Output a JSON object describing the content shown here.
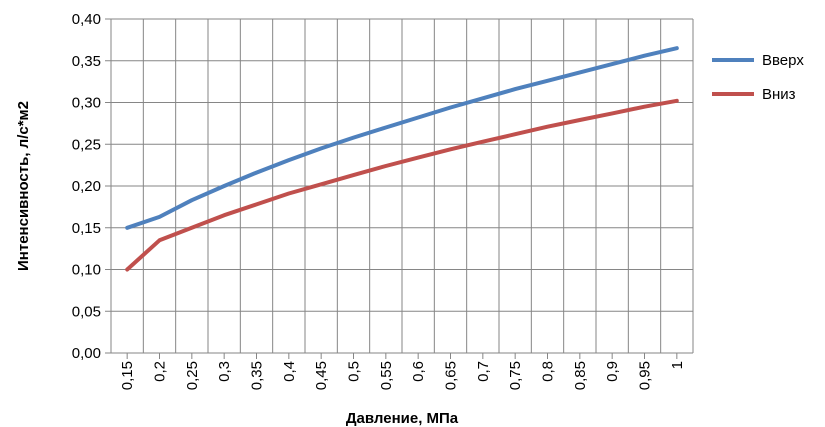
{
  "chart_data": {
    "type": "line",
    "title": "",
    "xlabel": "Давление, МПа",
    "ylabel": "Интенсивность, л/с*м2",
    "ylim": [
      0,
      0.4
    ],
    "y_ticks": [
      "0,00",
      "0,05",
      "0,10",
      "0,15",
      "0,20",
      "0,25",
      "0,30",
      "0,35",
      "0,40"
    ],
    "categories": [
      "0,15",
      "0,2",
      "0,25",
      "0,3",
      "0,35",
      "0,4",
      "0,45",
      "0,5",
      "0,55",
      "0,6",
      "0,65",
      "0,7",
      "0,75",
      "0,8",
      "0,85",
      "0,9",
      "0,95",
      "1"
    ],
    "grid": true,
    "legend_position": "right",
    "series": [
      {
        "name": "Вверх",
        "color": "#4F81BD",
        "values": [
          0.15,
          0.163,
          0.183,
          0.2,
          0.216,
          0.231,
          0.245,
          0.258,
          0.27,
          0.282,
          0.294,
          0.305,
          0.316,
          0.326,
          0.336,
          0.346,
          0.356,
          0.365
        ]
      },
      {
        "name": "Вниз",
        "color": "#C0504D",
        "values": [
          0.1,
          0.135,
          0.15,
          0.165,
          0.178,
          0.191,
          0.202,
          0.213,
          0.224,
          0.234,
          0.244,
          0.253,
          0.262,
          0.271,
          0.279,
          0.287,
          0.295,
          0.302
        ]
      }
    ]
  }
}
